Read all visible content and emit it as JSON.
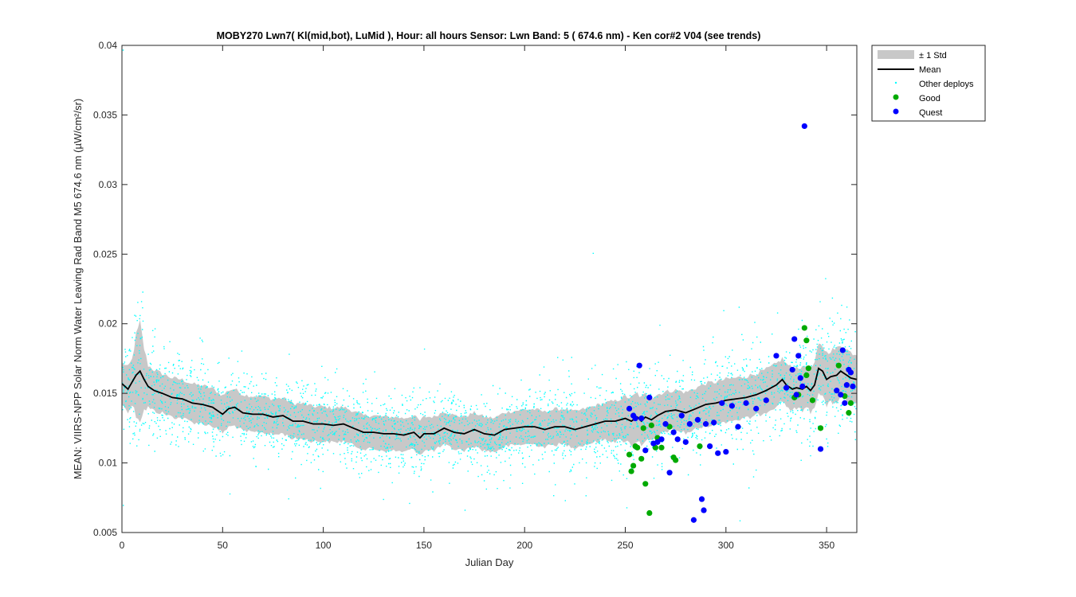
{
  "chart_data": {
    "type": "scatter",
    "title": "MOBY270   Lwn7( Kl(mid,bot), LuMid ),   Hour: all hours  Sensor: Lwn Band: 5 ( 674.6 nm)  - Ken cor#2 V04 (see trends)",
    "xlabel": "Julian Day",
    "ylabel": "MEAN: VIIRS-NPP Solar Norm Water Leaving Rad Band M5 674.6 nm (µW/cm²/sr)",
    "xlim": [
      0,
      365
    ],
    "ylim": [
      0.005,
      0.04
    ],
    "xticks": [
      0,
      50,
      100,
      150,
      200,
      250,
      300,
      350
    ],
    "xtick_labels": [
      "0",
      "50",
      "100",
      "150",
      "200",
      "250",
      "300",
      "350"
    ],
    "yticks": [
      0.005,
      0.01,
      0.015,
      0.02,
      0.025,
      0.03,
      0.035,
      0.04
    ],
    "ytick_labels": [
      "0.005",
      "0.01",
      "0.015",
      "0.02",
      "0.025",
      "0.03",
      "0.035",
      "0.04"
    ],
    "grid": false,
    "legend_position": "outside-top-right",
    "legend": [
      "± 1 Std",
      "Mean",
      "Other deploys",
      "Good",
      "Quest"
    ],
    "colors": {
      "std": "#c8c8c8",
      "mean": "#000000",
      "other": "#00ffff",
      "good": "#00aa00",
      "quest": "#0000ff"
    },
    "mean": {
      "x": [
        0,
        3,
        5,
        7,
        9,
        11,
        13,
        16,
        20,
        25,
        30,
        35,
        40,
        45,
        50,
        53,
        56,
        60,
        65,
        70,
        75,
        80,
        85,
        90,
        95,
        100,
        105,
        110,
        115,
        120,
        125,
        130,
        135,
        140,
        145,
        148,
        150,
        155,
        160,
        165,
        170,
        175,
        180,
        185,
        190,
        195,
        200,
        205,
        210,
        215,
        220,
        225,
        230,
        235,
        240,
        245,
        250,
        253,
        256,
        258,
        260,
        263,
        266,
        270,
        275,
        280,
        285,
        290,
        295,
        300,
        305,
        310,
        315,
        320,
        325,
        328,
        330,
        333,
        335,
        338,
        340,
        342,
        344,
        346,
        348,
        350,
        352,
        355,
        357,
        360,
        362,
        365
      ],
      "y": [
        0.0157,
        0.0153,
        0.0158,
        0.0163,
        0.0166,
        0.016,
        0.0155,
        0.0152,
        0.015,
        0.0147,
        0.0146,
        0.0143,
        0.0142,
        0.014,
        0.0135,
        0.0139,
        0.014,
        0.0136,
        0.0135,
        0.0135,
        0.0133,
        0.0134,
        0.013,
        0.013,
        0.0128,
        0.0128,
        0.0127,
        0.0128,
        0.0125,
        0.0122,
        0.0122,
        0.0121,
        0.0121,
        0.012,
        0.0122,
        0.0118,
        0.0121,
        0.0121,
        0.0125,
        0.0122,
        0.0121,
        0.0124,
        0.0121,
        0.012,
        0.0124,
        0.0125,
        0.0126,
        0.0126,
        0.0124,
        0.0126,
        0.0126,
        0.0124,
        0.0126,
        0.0128,
        0.013,
        0.013,
        0.0132,
        0.013,
        0.0133,
        0.013,
        0.0133,
        0.0131,
        0.0134,
        0.0137,
        0.0138,
        0.0136,
        0.0139,
        0.0142,
        0.0143,
        0.0145,
        0.0146,
        0.0147,
        0.0149,
        0.0152,
        0.0156,
        0.016,
        0.0156,
        0.0153,
        0.0154,
        0.0153,
        0.0155,
        0.0152,
        0.0156,
        0.0168,
        0.0166,
        0.016,
        0.0162,
        0.0163,
        0.0166,
        0.0163,
        0.0161,
        0.016
      ]
    },
    "std_halfwidth": {
      "x": [
        0,
        5,
        7,
        9,
        11,
        13,
        20,
        60,
        120,
        180,
        240,
        255,
        262,
        270,
        290,
        320,
        340,
        345,
        350,
        365
      ],
      "y": [
        0.0015,
        0.0016,
        0.0028,
        0.0034,
        0.0022,
        0.0015,
        0.0014,
        0.0013,
        0.0012,
        0.0012,
        0.0013,
        0.0017,
        0.0016,
        0.0014,
        0.0015,
        0.0015,
        0.0015,
        0.0016,
        0.0019,
        0.0018
      ]
    },
    "good": {
      "x": [
        252,
        253,
        254,
        255,
        256,
        258,
        259,
        260,
        262,
        263,
        265,
        266,
        268,
        272,
        274,
        275,
        287,
        334,
        336,
        339,
        340,
        340,
        341,
        343,
        347,
        356,
        359,
        361,
        362
      ],
      "y": [
        0.0106,
        0.0094,
        0.0098,
        0.0112,
        0.0111,
        0.0103,
        0.0125,
        0.0085,
        0.0064,
        0.0127,
        0.0111,
        0.0118,
        0.0111,
        0.0126,
        0.0104,
        0.0102,
        0.0112,
        0.0147,
        0.0149,
        0.0197,
        0.0188,
        0.0163,
        0.0168,
        0.0145,
        0.0125,
        0.017,
        0.0148,
        0.0136,
        0.0143
      ]
    },
    "quest": {
      "x": [
        252,
        254,
        255,
        257,
        258,
        260,
        262,
        264,
        266,
        268,
        270,
        272,
        274,
        276,
        278,
        280,
        282,
        284,
        286,
        288,
        289,
        290,
        292,
        294,
        296,
        298,
        300,
        303,
        306,
        310,
        315,
        320,
        325,
        330,
        333,
        334,
        335,
        336,
        337,
        338,
        339,
        347,
        355,
        357,
        358,
        359,
        360,
        361,
        362,
        363
      ],
      "y": [
        0.0139,
        0.0134,
        0.0132,
        0.017,
        0.0132,
        0.0109,
        0.0147,
        0.0114,
        0.0115,
        0.0117,
        0.0128,
        0.0093,
        0.0122,
        0.0117,
        0.0134,
        0.0115,
        0.0128,
        0.0059,
        0.0131,
        0.0074,
        0.0066,
        0.0128,
        0.0112,
        0.0129,
        0.0107,
        0.0143,
        0.0108,
        0.0141,
        0.0126,
        0.0143,
        0.0139,
        0.0145,
        0.0177,
        0.0154,
        0.0167,
        0.0189,
        0.0149,
        0.0177,
        0.0161,
        0.0155,
        0.0342,
        0.011,
        0.0152,
        0.0149,
        0.0181,
        0.0143,
        0.0156,
        0.0167,
        0.0165,
        0.0155
      ]
    },
    "other_deploys_note": "dense cyan point cloud around mean, roughly 3300 points, spread about ±2.5 std"
  }
}
